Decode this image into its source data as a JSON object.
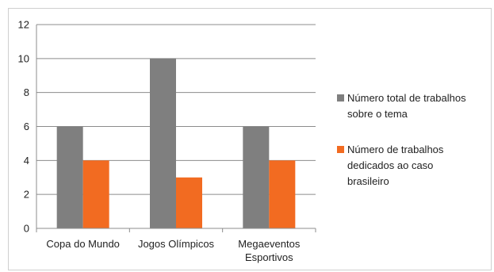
{
  "chart_data": {
    "type": "bar",
    "categories": [
      [
        "Copa do Mundo"
      ],
      [
        "Jogos Olímpicos"
      ],
      [
        "Megaeventos",
        "Esportivos"
      ]
    ],
    "series": [
      {
        "name": "Número total de trabalhos sobre o tema",
        "legend_lines": [
          "Número total de trabalhos",
          "sobre o tema"
        ],
        "color": "#7f7f7f",
        "values": [
          6,
          10,
          6
        ]
      },
      {
        "name": "Número de trabalhos dedicados ao caso brasileiro",
        "legend_lines": [
          "Número de trabalhos",
          "dedicados ao caso",
          "brasileiro"
        ],
        "color": "#f26b21",
        "values": [
          4,
          3,
          4
        ]
      }
    ],
    "yticks": [
      0,
      2,
      4,
      6,
      8,
      10,
      12
    ],
    "ylim": [
      0,
      12
    ],
    "grid": true,
    "legend_position": "right",
    "gridline_color": "#8c8c8c"
  }
}
